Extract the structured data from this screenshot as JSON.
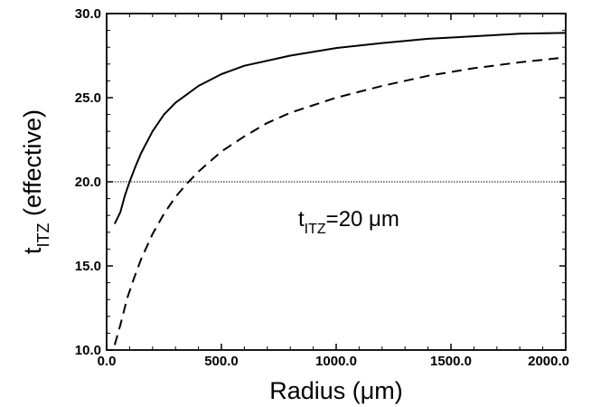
{
  "chart_data": {
    "type": "line",
    "xlabel": "Radius (μm)",
    "ylabel": {
      "main": "t",
      "sub": "ITZ",
      "rest": " (effective)"
    },
    "xlim": [
      0,
      2000
    ],
    "ylim": [
      10,
      30
    ],
    "xticks": [
      "0.0",
      "500.0",
      "1000.0",
      "1500.0",
      "2000.0"
    ],
    "yticks": [
      "10.0",
      "15.0",
      "20.0",
      "25.0",
      "30.0"
    ],
    "grid": false,
    "reference_line": {
      "y": 20,
      "style": "dotted"
    },
    "annotation": {
      "main": "t",
      "sub": "ITZ",
      "rest": "=20 μm"
    },
    "series": [
      {
        "style": "solid",
        "x": [
          35,
          60,
          80,
          100,
          125,
          150,
          200,
          250,
          300,
          350,
          400,
          500,
          600,
          700,
          800,
          1000,
          1200,
          1400,
          1600,
          1800,
          2000
        ],
        "y": [
          17.5,
          18.2,
          19.2,
          20.0,
          20.9,
          21.7,
          23.0,
          24.0,
          24.7,
          25.2,
          25.7,
          26.4,
          26.9,
          27.2,
          27.5,
          27.95,
          28.25,
          28.5,
          28.65,
          28.8,
          28.85
        ]
      },
      {
        "style": "dashed",
        "x": [
          35,
          60,
          90,
          120,
          150,
          200,
          250,
          300,
          350,
          400,
          500,
          600,
          700,
          800,
          1000,
          1200,
          1400,
          1600,
          1800,
          2000
        ],
        "y": [
          10.3,
          11.5,
          13.1,
          14.3,
          15.4,
          16.9,
          18.1,
          19.1,
          19.9,
          20.6,
          21.8,
          22.7,
          23.5,
          24.1,
          25.0,
          25.7,
          26.3,
          26.75,
          27.1,
          27.4
        ]
      }
    ]
  }
}
